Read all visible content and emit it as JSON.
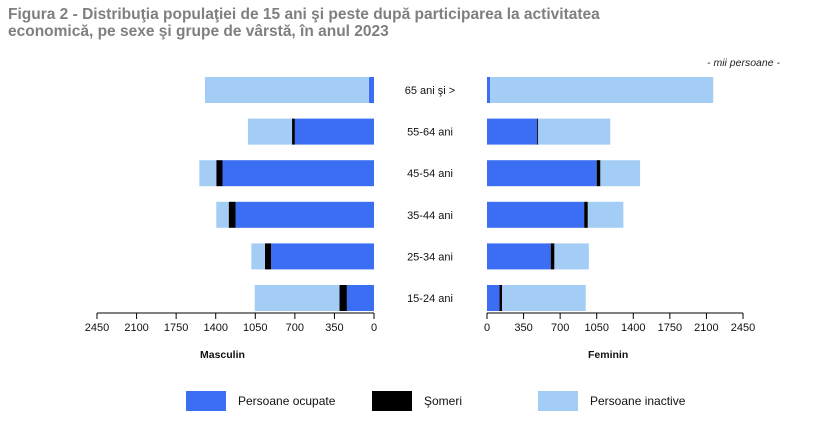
{
  "title_line1": "Figura 2 - Distribuţia populaţiei de 15 ani şi peste după participarea la activitatea",
  "title_line2": "economică, pe sexe şi grupe de vârstă, în anul 2023",
  "unit": "- mii persoane -",
  "colors": {
    "ocupate": "#3c6ef3",
    "someri": "#000000",
    "inactive": "#a4cdf6",
    "axis": "#000000",
    "title": "#7f7f7f"
  },
  "chart_data": {
    "type": "bar",
    "orientation": "horizontal",
    "stacked": true,
    "layout": "population-pyramid",
    "categories": [
      "65 ani şi >",
      "55-64 ani",
      "45-54 ani",
      "35-44 ani",
      "25-34 ani",
      "15-24 ani"
    ],
    "panels": [
      {
        "xlabel": "Masculin",
        "direction": "left",
        "xlim": [
          0,
          2450
        ],
        "ticks": [
          2450,
          2100,
          1750,
          1400,
          1050,
          700,
          350,
          0
        ],
        "series": [
          {
            "name": "Persoane ocupate",
            "values": [
              45,
              700,
              1340,
              1225,
              910,
              240
            ]
          },
          {
            "name": "Şomeri",
            "values": [
              0,
              25,
              55,
              60,
              55,
              65
            ]
          },
          {
            "name": "Persoane inactive",
            "values": [
              1450,
              390,
              150,
              110,
              120,
              750
            ]
          }
        ]
      },
      {
        "xlabel": "Feminin",
        "direction": "right",
        "xlim": [
          0,
          2450
        ],
        "ticks": [
          0,
          350,
          700,
          1050,
          1400,
          1750,
          2100,
          2450
        ],
        "series": [
          {
            "name": "Persoane ocupate",
            "values": [
              30,
              480,
              1050,
              930,
              610,
              120
            ]
          },
          {
            "name": "Şomeri",
            "values": [
              0,
              10,
              35,
              35,
              35,
              25
            ]
          },
          {
            "name": "Persoane inactive",
            "values": [
              2135,
              690,
              380,
              340,
              330,
              800
            ]
          }
        ]
      }
    ],
    "legend": {
      "position": "bottom",
      "entries": [
        "Persoane ocupate",
        "Şomeri",
        "Persoane inactive"
      ]
    },
    "grid": false
  }
}
